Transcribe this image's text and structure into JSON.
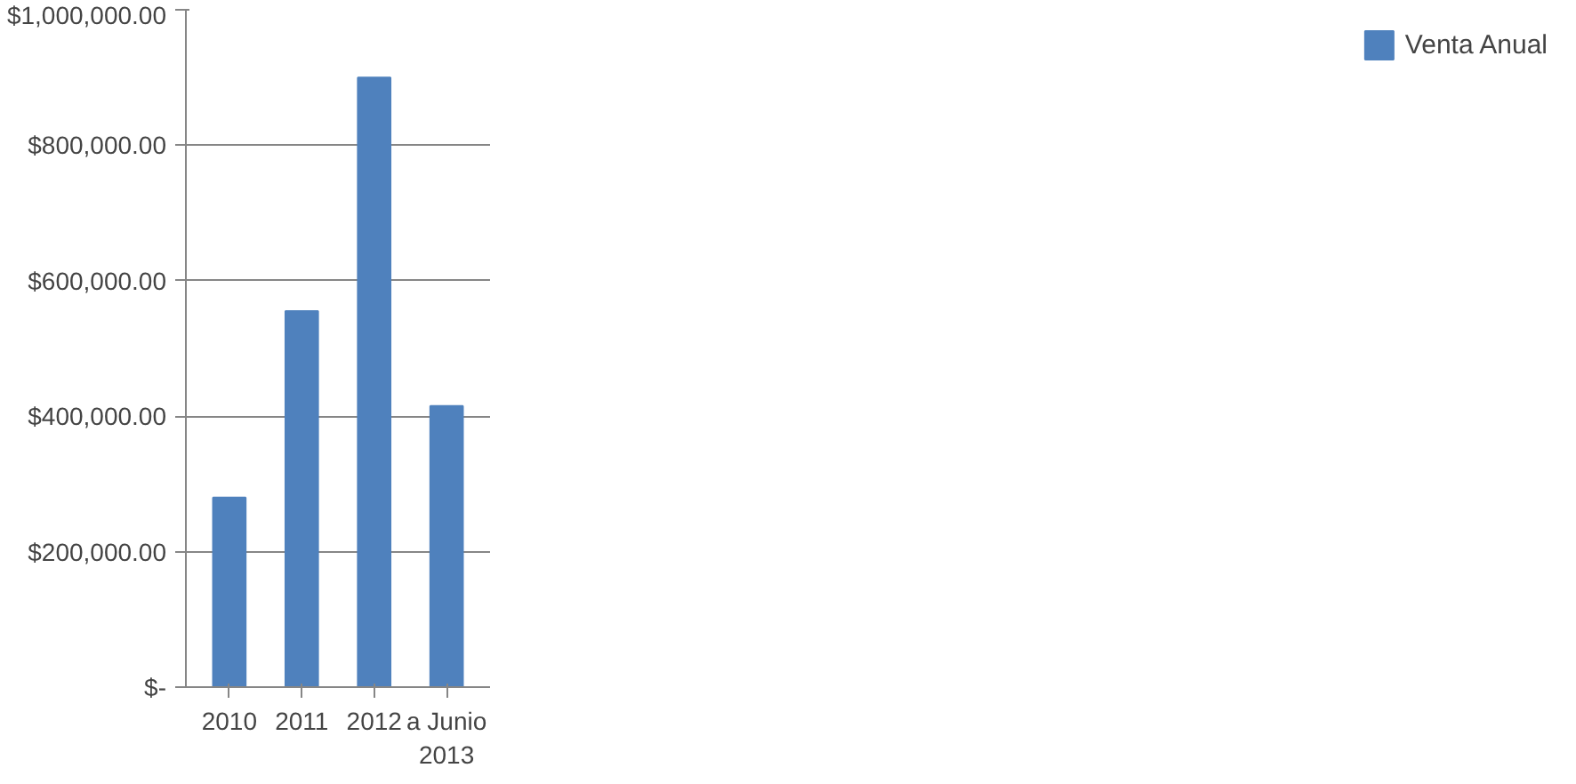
{
  "chart_data": {
    "type": "bar",
    "categories": [
      "2010",
      "2011",
      "2012",
      "a Junio\n2013"
    ],
    "series": [
      {
        "name": "Venta Anual",
        "color": "#4f81bd",
        "values": [
          280000,
          555000,
          900000,
          415000
        ]
      }
    ],
    "ylim": [
      0,
      1000000
    ],
    "yticks": [
      {
        "value": 0,
        "label": "$-"
      },
      {
        "value": 200000,
        "label": "$200,000.00"
      },
      {
        "value": 400000,
        "label": "$400,000.00"
      },
      {
        "value": 600000,
        "label": "$600,000.00"
      },
      {
        "value": 800000,
        "label": "$800,000.00"
      },
      {
        "value": 1000000,
        "label": "$1,000,000.00"
      }
    ],
    "grid": "y",
    "legend": "right"
  }
}
